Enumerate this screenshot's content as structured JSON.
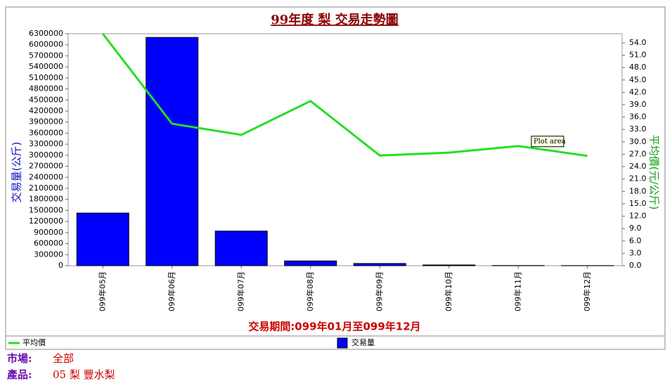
{
  "chart_data": {
    "type": "bar",
    "title": "99年度 梨 交易走勢圖",
    "categories": [
      "099年05月",
      "099年06月",
      "099年07月",
      "099年08月",
      "099年09月",
      "099年10月",
      "099年11月",
      "099年12月"
    ],
    "series": [
      {
        "name": "交易量",
        "type": "bar",
        "color": "#0000ff",
        "axis": "y",
        "values": [
          1430000,
          6200000,
          940000,
          130000,
          60000,
          20000,
          5000,
          3000
        ]
      },
      {
        "name": "平均價",
        "type": "line",
        "color": "#22e022",
        "axis": "y2",
        "values": [
          56.2,
          34.4,
          31.7,
          39.9,
          26.7,
          27.4,
          29.0,
          26.6
        ]
      }
    ],
    "ylabel": "交易量(公斤)",
    "y2label": "平均價(元/公斤)",
    "xlabel": "交易期間:099年01月至099年12月",
    "ylim": [
      0,
      6300000
    ],
    "yticks": [
      0,
      300000,
      600000,
      900000,
      1200000,
      1500000,
      1800000,
      2100000,
      2400000,
      2700000,
      3000000,
      3300000,
      3600000,
      3900000,
      4200000,
      4500000,
      4800000,
      5100000,
      5400000,
      5700000,
      6000000,
      6300000
    ],
    "y2lim": [
      0,
      56.2
    ],
    "y2ticks": [
      {
        "value": 0,
        "label": "0.0"
      },
      {
        "value": 3,
        "label": "3.0"
      },
      {
        "value": 6,
        "label": "6.0"
      },
      {
        "value": 9,
        "label": "9.0"
      },
      {
        "value": 12,
        "label": "12.0"
      },
      {
        "value": 15,
        "label": "15.0"
      },
      {
        "value": 18,
        "label": "18.0"
      },
      {
        "value": 21,
        "label": "21.0"
      },
      {
        "value": 24,
        "label": "24.0"
      },
      {
        "value": 27,
        "label": "27.0"
      },
      {
        "value": 30,
        "label": "30.0"
      },
      {
        "value": 33,
        "label": "33.0"
      },
      {
        "value": 36,
        "label": "36.0"
      },
      {
        "value": 39,
        "label": "39.0"
      },
      {
        "value": 42,
        "label": "42.0"
      },
      {
        "value": 45,
        "label": "45.0"
      },
      {
        "value": 48,
        "label": "48.0"
      },
      {
        "value": 51,
        "label": "51.0"
      },
      {
        "value": 54,
        "label": "54.0"
      }
    ],
    "annotation": "Plot area"
  },
  "footer": {
    "market_label": "市場:",
    "market": "全部",
    "product_label": "產品:",
    "product": "05 梨 豐水梨"
  }
}
